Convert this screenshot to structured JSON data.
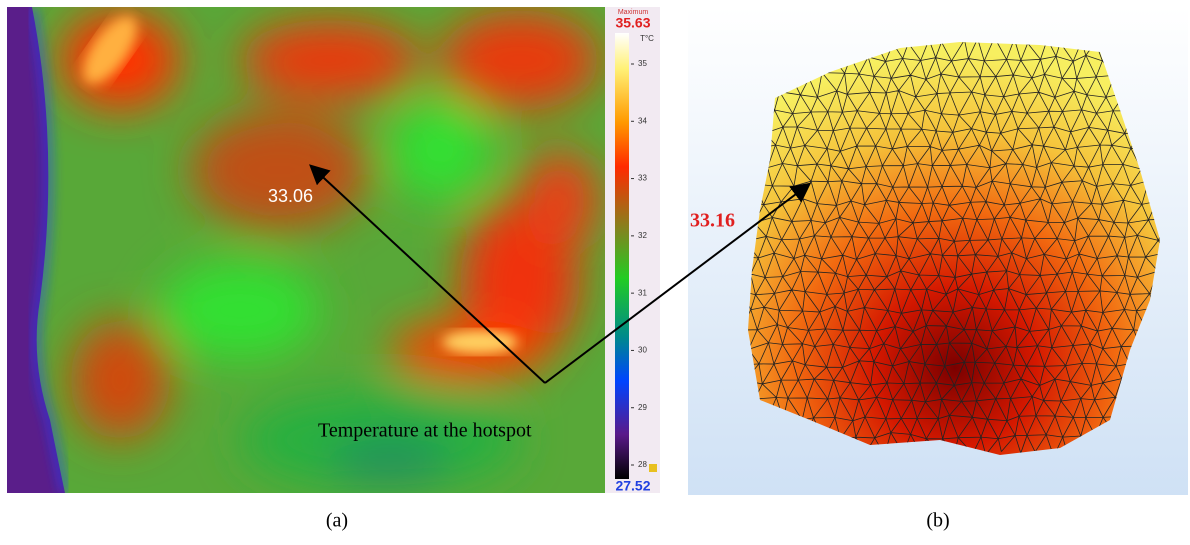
{
  "thermal": {
    "max_title": "Maximum",
    "max_value": "35.63",
    "unit": "T°C",
    "min_value": "27.52",
    "colorbar_ticks": [
      35,
      34,
      33,
      32,
      31,
      30,
      29,
      28
    ],
    "spot_label": "33.06",
    "annotation": "Temperature at the hotspot",
    "caption": "(a)"
  },
  "model": {
    "spot_label": "33.16",
    "caption": "(b)"
  }
}
